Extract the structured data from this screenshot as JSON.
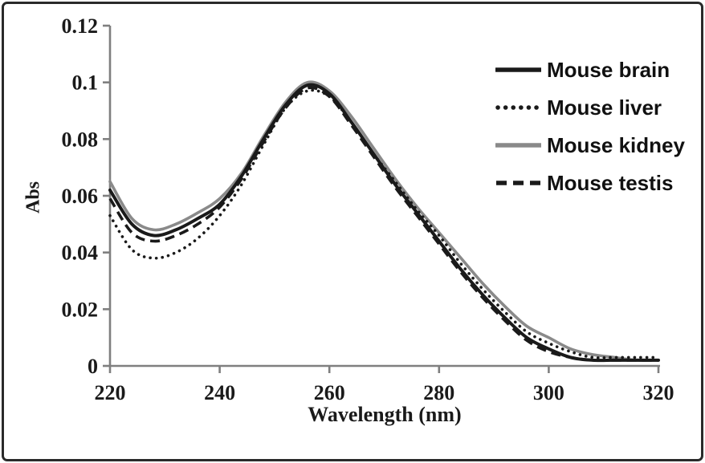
{
  "frame": {
    "border_color": "#2a2a2a",
    "background": "#ffffff"
  },
  "chart_data": {
    "type": "line",
    "title": "",
    "xlabel": "Wavelength (nm)",
    "ylabel": "Abs",
    "xlim": [
      220,
      320
    ],
    "ylim": [
      0,
      0.12
    ],
    "x_ticks": [
      220,
      240,
      260,
      280,
      300,
      320
    ],
    "x_tick_labels": [
      "220",
      "240",
      "260",
      "280",
      "300",
      "320"
    ],
    "y_ticks": [
      0,
      0.02,
      0.04,
      0.06,
      0.08,
      0.1,
      0.12
    ],
    "y_tick_labels": [
      "0",
      "0.02",
      "0.04",
      "0.06",
      "0.08",
      "0.1",
      "0.12"
    ],
    "grid": false,
    "legend_position": "upper-right",
    "axis_color": "#7f7f7f",
    "text_color": "#1a1a1a",
    "x": [
      220,
      224,
      228,
      232,
      236,
      240,
      244,
      248,
      252,
      256,
      260,
      264,
      268,
      272,
      276,
      280,
      284,
      288,
      292,
      296,
      300,
      304,
      308,
      312,
      316,
      320
    ],
    "series": [
      {
        "name": "Mouse brain",
        "color": "#1a1a1a",
        "style": "solid",
        "width": 4,
        "values": [
          0.062,
          0.05,
          0.046,
          0.048,
          0.052,
          0.057,
          0.067,
          0.08,
          0.092,
          0.099,
          0.096,
          0.086,
          0.075,
          0.064,
          0.054,
          0.044,
          0.034,
          0.025,
          0.017,
          0.01,
          0.006,
          0.003,
          0.002,
          0.002,
          0.002,
          0.002
        ]
      },
      {
        "name": "Mouse liver",
        "color": "#1a1a1a",
        "style": "dotted",
        "width": 3.6,
        "values": [
          0.053,
          0.041,
          0.038,
          0.04,
          0.045,
          0.053,
          0.064,
          0.078,
          0.091,
          0.097,
          0.095,
          0.086,
          0.075,
          0.065,
          0.055,
          0.046,
          0.036,
          0.027,
          0.019,
          0.012,
          0.008,
          0.005,
          0.003,
          0.003,
          0.003,
          0.003
        ]
      },
      {
        "name": "Mouse kidney",
        "color": "#8a8a8a",
        "style": "solid",
        "width": 3.6,
        "values": [
          0.065,
          0.052,
          0.048,
          0.05,
          0.054,
          0.059,
          0.068,
          0.081,
          0.093,
          0.1,
          0.097,
          0.088,
          0.077,
          0.066,
          0.056,
          0.047,
          0.038,
          0.029,
          0.021,
          0.014,
          0.01,
          0.006,
          0.004,
          0.003,
          0.002,
          0.002
        ]
      },
      {
        "name": "Mouse testis",
        "color": "#1a1a1a",
        "style": "dashed",
        "width": 3.6,
        "values": [
          0.059,
          0.047,
          0.044,
          0.046,
          0.05,
          0.056,
          0.066,
          0.079,
          0.091,
          0.098,
          0.095,
          0.085,
          0.074,
          0.063,
          0.053,
          0.043,
          0.033,
          0.024,
          0.016,
          0.009,
          0.005,
          0.003,
          0.002,
          0.002,
          0.002,
          0.002
        ]
      }
    ]
  }
}
